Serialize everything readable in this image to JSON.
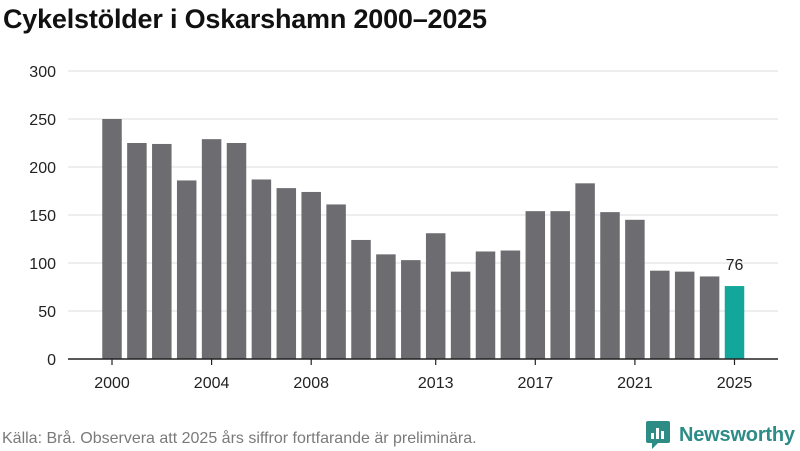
{
  "title": "Cykelstölder i Oskarshamn 2000–2025",
  "source_note": "Källa: Brå. Observera att 2025 års siffror fortfarande är preliminära.",
  "brand": {
    "name": "Newsworthy",
    "icon": "newsworthy-logo-icon",
    "color": "#2e8c87"
  },
  "chart_data": {
    "type": "bar",
    "title": "Cykelstölder i Oskarshamn 2000–2025",
    "xlabel": "",
    "ylabel": "",
    "categories": [
      "2000",
      "2001",
      "2002",
      "2003",
      "2004",
      "2005",
      "2006",
      "2007",
      "2008",
      "2009",
      "2010",
      "2011",
      "2012",
      "2013",
      "2014",
      "2015",
      "2016",
      "2017",
      "2018",
      "2019",
      "2020",
      "2021",
      "2022",
      "2023",
      "2024",
      "2025"
    ],
    "values": [
      250,
      225,
      224,
      186,
      229,
      225,
      187,
      178,
      174,
      161,
      124,
      109,
      103,
      131,
      91,
      112,
      113,
      154,
      154,
      183,
      153,
      145,
      92,
      91,
      86,
      76
    ],
    "x_tick_labels": [
      "2000",
      "2004",
      "2008",
      "2013",
      "2017",
      "2021",
      "2025"
    ],
    "ylim": [
      0,
      300
    ],
    "y_ticks": [
      0,
      50,
      100,
      150,
      200,
      250,
      300
    ],
    "grid": true,
    "bar_color": "#6d6c71",
    "highlight_color": "#13a69a",
    "highlight_index": 25,
    "highlight_label": "76"
  }
}
